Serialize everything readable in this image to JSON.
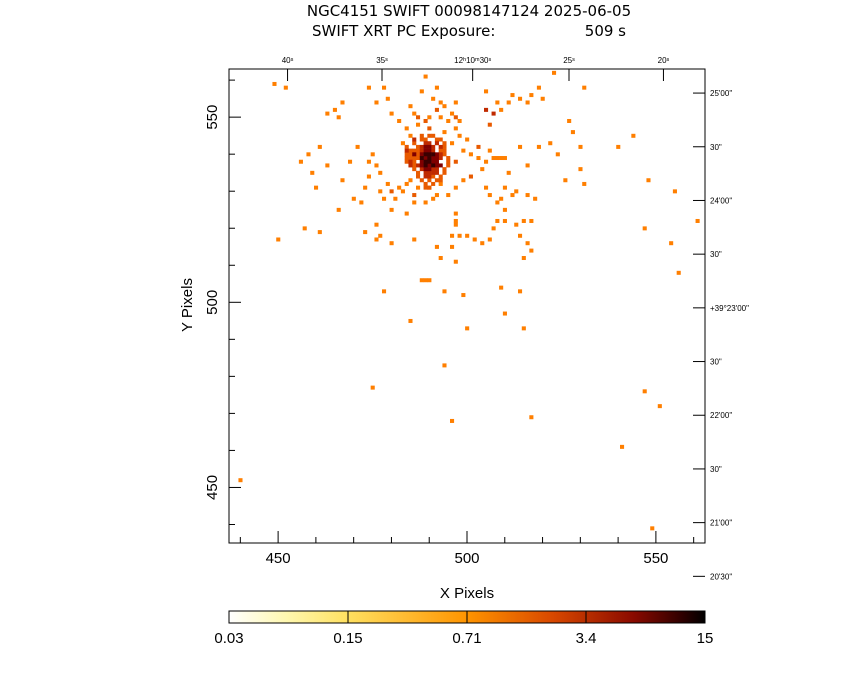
{
  "title_line1": "NGC4151 SWIFT 00098147124 2025-06-05",
  "title_line2_left": "SWIFT XRT PC Exposure:",
  "title_line2_right": "509 s",
  "chart_data": {
    "type": "heatmap",
    "xlabel": "X Pixels",
    "ylabel": "Y Pixels",
    "xlim": [
      437,
      563
    ],
    "ylim": [
      435,
      563
    ],
    "x_ticks": [
      {
        "value": 450,
        "label": "450"
      },
      {
        "value": 500,
        "label": "500"
      },
      {
        "value": 550,
        "label": "550"
      }
    ],
    "y_ticks": [
      {
        "value": 450,
        "label": "450"
      },
      {
        "value": 500,
        "label": "500"
      },
      {
        "value": 550,
        "label": "550"
      }
    ],
    "ra_ticks": [
      {
        "x": 452.5,
        "label": "40ˢ"
      },
      {
        "x": 477.5,
        "label": "35ˢ"
      },
      {
        "x": 501.5,
        "label": "12ʰ10ᵐ30ˢ"
      },
      {
        "x": 527.0,
        "label": "25ˢ"
      },
      {
        "x": 552.0,
        "label": "20ˢ"
      }
    ],
    "dec_ticks": [
      {
        "y": 556.5,
        "label": "25'00\""
      },
      {
        "y": 542.0,
        "label": "30\""
      },
      {
        "y": 527.5,
        "label": "24'00\""
      },
      {
        "y": 513.0,
        "label": "30\""
      },
      {
        "y": 498.5,
        "label": "+39°23'00\""
      },
      {
        "y": 484.0,
        "label": "30\""
      },
      {
        "y": 469.5,
        "label": "22'00\""
      },
      {
        "y": 455.0,
        "label": "30\""
      },
      {
        "y": 440.5,
        "label": "21'00\""
      },
      {
        "y": 426.0,
        "label": "20'30\""
      }
    ],
    "colorbar": {
      "ticks": [
        {
          "value": 0.03,
          "label": "0.03"
        },
        {
          "value": 0.15,
          "label": "0.15"
        },
        {
          "value": 0.71,
          "label": "0.71"
        },
        {
          "value": 3.4,
          "label": "3.4"
        },
        {
          "value": 15,
          "label": "15"
        }
      ],
      "min": 0.03,
      "max": 15,
      "scale": "log"
    },
    "color_stops": [
      "#ffffff",
      "#fff07a",
      "#ffc040",
      "#ff8c00",
      "#d04000",
      "#8a0000",
      "#000000"
    ],
    "pixels": [
      [
        452,
        558,
        1
      ],
      [
        449,
        559,
        1
      ],
      [
        465,
        552,
        1
      ],
      [
        467,
        554,
        1
      ],
      [
        463,
        551,
        1
      ],
      [
        466,
        550,
        1
      ],
      [
        461,
        542,
        1
      ],
      [
        456,
        538,
        1
      ],
      [
        458,
        540,
        1
      ],
      [
        463,
        537,
        1
      ],
      [
        459,
        535,
        1
      ],
      [
        460,
        531,
        1
      ],
      [
        471,
        542,
        1
      ],
      [
        469,
        538,
        1
      ],
      [
        467,
        533,
        1
      ],
      [
        470,
        528,
        1
      ],
      [
        466,
        525,
        1
      ],
      [
        472,
        527,
        1
      ],
      [
        474,
        538,
        1
      ],
      [
        475,
        540,
        1
      ],
      [
        476,
        537,
        1
      ],
      [
        474,
        534,
        1
      ],
      [
        473,
        531,
        1
      ],
      [
        477,
        535,
        1
      ],
      [
        477,
        530,
        1
      ],
      [
        479,
        532,
        1
      ],
      [
        478,
        528,
        1
      ],
      [
        480,
        525,
        1
      ],
      [
        482,
        531,
        1
      ],
      [
        481,
        528,
        1
      ],
      [
        483,
        530,
        1
      ],
      [
        484,
        532,
        1
      ],
      [
        485,
        533,
        1
      ],
      [
        486,
        527,
        1
      ],
      [
        484,
        524,
        1
      ],
      [
        474,
        558,
        1
      ],
      [
        478,
        558,
        1
      ],
      [
        476,
        554,
        1
      ],
      [
        479,
        555,
        1
      ],
      [
        480,
        551,
        1
      ],
      [
        482,
        549,
        1
      ],
      [
        485,
        553,
        1
      ],
      [
        486,
        551,
        1
      ],
      [
        488,
        557,
        1
      ],
      [
        489,
        561,
        1
      ],
      [
        492,
        558,
        1
      ],
      [
        493,
        554,
        1
      ],
      [
        491,
        555,
        1
      ],
      [
        494,
        553,
        1
      ],
      [
        497,
        554,
        1
      ],
      [
        496,
        551,
        1
      ],
      [
        498,
        549,
        1
      ],
      [
        497,
        547,
        1
      ],
      [
        495,
        549,
        1
      ],
      [
        493,
        550,
        1
      ],
      [
        490,
        550,
        1
      ],
      [
        487,
        548,
        1
      ],
      [
        485,
        545,
        1
      ],
      [
        484,
        547,
        1
      ],
      [
        483,
        543,
        1
      ],
      [
        486,
        540,
        1
      ],
      [
        494,
        546,
        1
      ],
      [
        496,
        543,
        1
      ],
      [
        498,
        545,
        1
      ],
      [
        499,
        541,
        1
      ],
      [
        500,
        544,
        1
      ],
      [
        501,
        540,
        1
      ],
      [
        503,
        539,
        1
      ],
      [
        505,
        538,
        1
      ],
      [
        506,
        541,
        1
      ],
      [
        507,
        539,
        1
      ],
      [
        508,
        539,
        1
      ],
      [
        509,
        539,
        1
      ],
      [
        510,
        539,
        1
      ],
      [
        504,
        536,
        1
      ],
      [
        505,
        531,
        1
      ],
      [
        506,
        529,
        1
      ],
      [
        508,
        527,
        1
      ],
      [
        509,
        528,
        1
      ],
      [
        510,
        531,
        1
      ],
      [
        512,
        529,
        1
      ],
      [
        513,
        530,
        1
      ],
      [
        516,
        529,
        1
      ],
      [
        518,
        528,
        1
      ],
      [
        511,
        535,
        1
      ],
      [
        510,
        525,
        1
      ],
      [
        499,
        533,
        1
      ],
      [
        497,
        531,
        1
      ],
      [
        495,
        529,
        1
      ],
      [
        493,
        532,
        1
      ],
      [
        492,
        529,
        1
      ],
      [
        490,
        531,
        1
      ],
      [
        497,
        524,
        1
      ],
      [
        497,
        522,
        1
      ],
      [
        497,
        521,
        1
      ],
      [
        498,
        518,
        1
      ],
      [
        496,
        518,
        1
      ],
      [
        500,
        518,
        1
      ],
      [
        496,
        515,
        1
      ],
      [
        502,
        517,
        1
      ],
      [
        504,
        516,
        1
      ],
      [
        506,
        517,
        1
      ],
      [
        507,
        520,
        1
      ],
      [
        508,
        522,
        1
      ],
      [
        510,
        522,
        1
      ],
      [
        513,
        521,
        1
      ],
      [
        515,
        522,
        1
      ],
      [
        517,
        522,
        1
      ],
      [
        514,
        518,
        1
      ],
      [
        516,
        516,
        1
      ],
      [
        517,
        514,
        1
      ],
      [
        515,
        512,
        1
      ],
      [
        497,
        511,
        1
      ],
      [
        493,
        512,
        1
      ],
      [
        492,
        515,
        1
      ],
      [
        490,
        506,
        1
      ],
      [
        489,
        506,
        1
      ],
      [
        488,
        506,
        1
      ],
      [
        494,
        503,
        1
      ],
      [
        499,
        502,
        1
      ],
      [
        509,
        504,
        1
      ],
      [
        514,
        503,
        1
      ],
      [
        486,
        517,
        1
      ],
      [
        480,
        516,
        1
      ],
      [
        477,
        518,
        1
      ],
      [
        476,
        521,
        1
      ],
      [
        476,
        517,
        1
      ],
      [
        473,
        519,
        1
      ],
      [
        461,
        519,
        1
      ],
      [
        457,
        520,
        1
      ],
      [
        450,
        517,
        1
      ],
      [
        491,
        528,
        1
      ],
      [
        489,
        527,
        1
      ],
      [
        487,
        531,
        1
      ],
      [
        505,
        557,
        1
      ],
      [
        508,
        554,
        1
      ],
      [
        512,
        556,
        1
      ],
      [
        514,
        555,
        1
      ],
      [
        516,
        554,
        1
      ],
      [
        517,
        556,
        1
      ],
      [
        519,
        558,
        1
      ],
      [
        520,
        555,
        1
      ],
      [
        523,
        562,
        1
      ],
      [
        531,
        558,
        1
      ],
      [
        527,
        549,
        1
      ],
      [
        528,
        546,
        1
      ],
      [
        530,
        542,
        1
      ],
      [
        522,
        543,
        1
      ],
      [
        524,
        540,
        1
      ],
      [
        526,
        533,
        1
      ],
      [
        531,
        532,
        1
      ],
      [
        530,
        536,
        1
      ],
      [
        540,
        542,
        1
      ],
      [
        544,
        545,
        1
      ],
      [
        548,
        533,
        1
      ],
      [
        555,
        530,
        1
      ],
      [
        547,
        520,
        1
      ],
      [
        554,
        516,
        1
      ],
      [
        556,
        508,
        1
      ],
      [
        561,
        522,
        1
      ],
      [
        511,
        554,
        1
      ],
      [
        509,
        552,
        1
      ],
      [
        514,
        542,
        1
      ],
      [
        519,
        542,
        1
      ],
      [
        516,
        537,
        1
      ],
      [
        478,
        503,
        1
      ],
      [
        485,
        495,
        1
      ],
      [
        500,
        493,
        1
      ],
      [
        510,
        497,
        1
      ],
      [
        515,
        493,
        1
      ],
      [
        475,
        477,
        1
      ],
      [
        494,
        483,
        1
      ],
      [
        496,
        468,
        1
      ],
      [
        517,
        469,
        1
      ],
      [
        541,
        461,
        1
      ],
      [
        547,
        476,
        1
      ],
      [
        551,
        472,
        1
      ],
      [
        549,
        439,
        1
      ],
      [
        440,
        452,
        1
      ],
      [
        497,
        538,
        2
      ],
      [
        501,
        534,
        2
      ],
      [
        493,
        541,
        2
      ],
      [
        488,
        537,
        2
      ],
      [
        489,
        549,
        2
      ],
      [
        506,
        548,
        2
      ],
      [
        480,
        530,
        2
      ],
      [
        503,
        542,
        2
      ],
      [
        492,
        552,
        2
      ],
      [
        497,
        550,
        2
      ],
      [
        486,
        529,
        2
      ],
      [
        487,
        550,
        2
      ],
      [
        484,
        542,
        2
      ],
      [
        485,
        541,
        2
      ],
      [
        486,
        541,
        2
      ],
      [
        487,
        541,
        2
      ],
      [
        484,
        540,
        2
      ],
      [
        485,
        540,
        2
      ],
      [
        487,
        540,
        2
      ],
      [
        484,
        539,
        2
      ],
      [
        485,
        539,
        2
      ],
      [
        486,
        539,
        2
      ],
      [
        487,
        539,
        2
      ],
      [
        484,
        538,
        2
      ],
      [
        486,
        538,
        2
      ],
      [
        488,
        544,
        2
      ],
      [
        489,
        544,
        2
      ],
      [
        490,
        545,
        2
      ],
      [
        491,
        545,
        2
      ],
      [
        492,
        544,
        2
      ],
      [
        493,
        544,
        2
      ],
      [
        494,
        543,
        2
      ],
      [
        494,
        542,
        2
      ],
      [
        494,
        541,
        2
      ],
      [
        494,
        540,
        2
      ],
      [
        495,
        539,
        2
      ],
      [
        495,
        538,
        2
      ],
      [
        495,
        537,
        2
      ],
      [
        494,
        536,
        2
      ],
      [
        494,
        535,
        2
      ],
      [
        493,
        534,
        2
      ],
      [
        493,
        533,
        2
      ],
      [
        492,
        533,
        2
      ],
      [
        491,
        532,
        2
      ],
      [
        490,
        533,
        2
      ],
      [
        489,
        532,
        2
      ],
      [
        488,
        533,
        2
      ],
      [
        487,
        534,
        2
      ],
      [
        487,
        535,
        2
      ],
      [
        486,
        536,
        2
      ],
      [
        486,
        537,
        2
      ],
      [
        489,
        531,
        2
      ],
      [
        490,
        531,
        2
      ],
      [
        491,
        534,
        2
      ],
      [
        488,
        545,
        2
      ],
      [
        490,
        547,
        2
      ],
      [
        486,
        543,
        2
      ],
      [
        487,
        542,
        2
      ],
      [
        488,
        542,
        3
      ],
      [
        490,
        543,
        3
      ],
      [
        492,
        543,
        3
      ],
      [
        493,
        542,
        3
      ],
      [
        485,
        538,
        3
      ],
      [
        491,
        542,
        3
      ],
      [
        491,
        541,
        3
      ],
      [
        488,
        541,
        3
      ],
      [
        493,
        540,
        3
      ],
      [
        493,
        539,
        3
      ],
      [
        489,
        535,
        3
      ],
      [
        489,
        534,
        3
      ],
      [
        490,
        534,
        3
      ],
      [
        490,
        535,
        3
      ],
      [
        491,
        536,
        3
      ],
      [
        488,
        536,
        3
      ],
      [
        492,
        536,
        3
      ],
      [
        492,
        535,
        3
      ],
      [
        491,
        535,
        3
      ],
      [
        487,
        537,
        3
      ],
      [
        485,
        537,
        3
      ],
      [
        484,
        541,
        3
      ],
      [
        489,
        543,
        3
      ],
      [
        486,
        544,
        3
      ],
      [
        507,
        551,
        3
      ],
      [
        505,
        552,
        3
      ],
      [
        488,
        538,
        4
      ],
      [
        488,
        537,
        4
      ],
      [
        489,
        536,
        4
      ],
      [
        489,
        539,
        4
      ],
      [
        490,
        537,
        4
      ],
      [
        491,
        538,
        4
      ],
      [
        491,
        539,
        4
      ],
      [
        492,
        538,
        4
      ],
      [
        492,
        537,
        4
      ],
      [
        489,
        541,
        4
      ],
      [
        489,
        542,
        4
      ],
      [
        490,
        542,
        4
      ],
      [
        490,
        541,
        4
      ],
      [
        492,
        540,
        4
      ],
      [
        492,
        539,
        4
      ],
      [
        486,
        540,
        4
      ],
      [
        488,
        540,
        4
      ],
      [
        493,
        537,
        4
      ],
      [
        490,
        536,
        4
      ],
      [
        488,
        539,
        5
      ],
      [
        489,
        538,
        5
      ],
      [
        490,
        538,
        5
      ],
      [
        491,
        537,
        5
      ],
      [
        489,
        540,
        5
      ],
      [
        490,
        540,
        5
      ],
      [
        490,
        539,
        5
      ],
      [
        491,
        540,
        5
      ],
      [
        489,
        537,
        5
      ]
    ]
  }
}
